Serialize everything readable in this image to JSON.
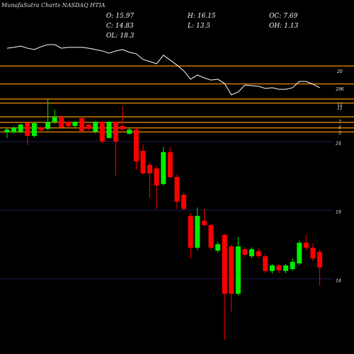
{
  "chart_data": {
    "type": "candlestick",
    "title": "MunafaSutra Charts NASDAQ HTIA",
    "stats": [
      {
        "label": "O:",
        "value": 15.97
      },
      {
        "label": "H:",
        "value": 16.15
      },
      {
        "label": "OC:",
        "value": 7.69
      },
      {
        "label": "C:",
        "value": 14.83
      },
      {
        "label": "L:",
        "value": 13.5
      },
      {
        "label": "OH:",
        "value": 1.13
      },
      {
        "label": "OL:",
        "value": 18.3
      }
    ],
    "ylim": [
      8.53,
      34.31
    ],
    "yticks": [
      24,
      19,
      14
    ],
    "grid": true,
    "up_color": "#00ee00",
    "down_color": "#ff0000",
    "open": [
      24.67,
      24.67,
      24.72,
      25.39,
      24.41,
      25.03,
      24.93,
      25.44,
      25.8,
      25.44,
      25.13,
      25.7,
      25.24,
      24.72,
      25.44,
      24.26,
      25.44,
      25.13,
      24.57,
      24.88,
      23.33,
      22.3,
      22.04,
      20.91,
      23.23,
      21.42,
      20.13,
      18.59,
      16.27,
      18.23,
      17.92,
      16.06,
      17.2,
      16.37,
      12.92,
      16.16,
      15.65,
      16.01,
      15.65,
      14.57,
      14.98,
      14.57,
      14.72,
      15.13,
      16.63,
      16.27,
      15.97
    ],
    "high": [
      25.03,
      25.1,
      25.3,
      25.45,
      25.4,
      25.1,
      27.09,
      26.32,
      25.9,
      25.5,
      25.5,
      25.8,
      25.3,
      25.5,
      25.5,
      25.5,
      25.5,
      26.58,
      25.0,
      25.0,
      23.8,
      22.5,
      22.2,
      23.6,
      23.6,
      21.6,
      20.3,
      18.8,
      19.2,
      19.1,
      18.0,
      16.7,
      17.3,
      16.5,
      17.04,
      16.3,
      16.3,
      16.2,
      15.8,
      15.1,
      15.1,
      15.1,
      15.5,
      16.8,
      17.2,
      16.6,
      16.15
    ],
    "low": [
      24.26,
      24.6,
      24.6,
      23.74,
      24.3,
      24.7,
      24.8,
      25.3,
      24.9,
      25.0,
      25.0,
      24.7,
      24.8,
      24.6,
      23.9,
      24.2,
      21.53,
      24.8,
      24.5,
      21.94,
      21.6,
      19.87,
      19.1,
      20.8,
      21.3,
      19.1,
      19.0,
      15.49,
      16.1,
      17.8,
      16.1,
      15.9,
      9.57,
      11.63,
      12.8,
      15.6,
      15.5,
      15.5,
      14.4,
      14.4,
      14.4,
      14.4,
      14.6,
      15.0,
      16.1,
      15.3,
      13.5
    ],
    "close": [
      24.88,
      25.03,
      25.24,
      24.41,
      25.34,
      24.82,
      25.44,
      25.8,
      25.03,
      25.13,
      25.44,
      24.77,
      24.93,
      25.44,
      24.0,
      25.44,
      24.0,
      24.88,
      24.88,
      22.56,
      21.68,
      21.68,
      20.8,
      23.23,
      21.42,
      19.62,
      19.1,
      16.27,
      18.59,
      17.92,
      16.27,
      16.53,
      12.92,
      12.92,
      16.37,
      15.75,
      16.16,
      15.65,
      14.57,
      14.98,
      14.62,
      14.98,
      15.24,
      16.63,
      16.27,
      15.49,
      14.83
    ],
    "line": {
      "color": "#ffffff",
      "values": [
        30.8,
        30.86,
        30.96,
        30.8,
        30.7,
        30.91,
        31.06,
        31.06,
        30.8,
        30.86,
        30.86,
        30.86,
        30.8,
        30.7,
        30.6,
        30.44,
        30.6,
        30.7,
        30.5,
        30.39,
        29.98,
        29.83,
        29.67,
        30.29,
        29.93,
        29.57,
        29.15,
        28.54,
        28.85,
        28.64,
        28.48,
        28.54,
        28.23,
        27.4,
        27.61,
        28.12,
        28.07,
        28.02,
        27.87,
        27.92,
        27.81,
        27.81,
        27.92,
        28.38,
        28.38,
        28.18,
        27.92
      ]
    },
    "levels_color": "#d07a00",
    "levels": [
      {
        "value": 29.5,
        "label": "20"
      },
      {
        "value": 28.2,
        "label": "296"
      },
      {
        "value": 27.1,
        "label": "12"
      },
      {
        "value": 26.8,
        "label": "11"
      },
      {
        "value": 25.8,
        "label": "7"
      },
      {
        "value": 25.4,
        "label": "6"
      },
      {
        "value": 25.0,
        "label": "5"
      },
      {
        "value": 24.7,
        "label": null
      }
    ]
  }
}
